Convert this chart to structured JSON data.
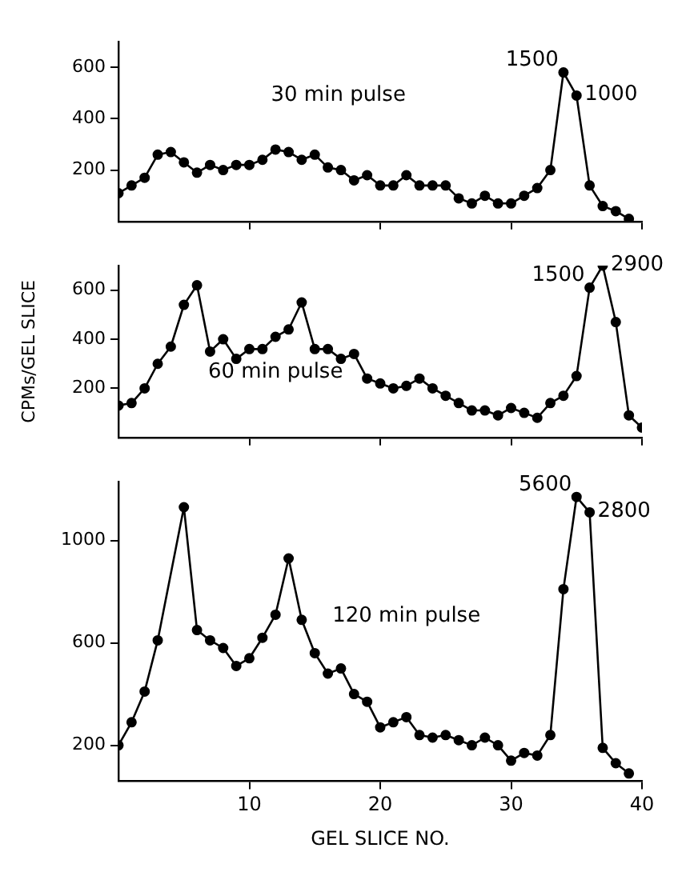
{
  "chart_data": [
    {
      "type": "line",
      "x": [
        0,
        1,
        2,
        3,
        4,
        5,
        6,
        7,
        8,
        9,
        10,
        11,
        12,
        13,
        14,
        15,
        16,
        17,
        18,
        19,
        20,
        21,
        22,
        23,
        24,
        25,
        26,
        27,
        28,
        29,
        30,
        31,
        32,
        33,
        34,
        35,
        36,
        37,
        38,
        39
      ],
      "values": [
        110,
        140,
        170,
        260,
        270,
        230,
        190,
        220,
        200,
        220,
        220,
        240,
        280,
        270,
        240,
        260,
        210,
        200,
        160,
        180,
        140,
        140,
        180,
        140,
        140,
        140,
        90,
        70,
        100,
        70,
        70,
        100,
        130,
        200,
        580,
        490,
        140,
        60,
        40,
        10
      ],
      "color": "#000000",
      "xlim": [
        0,
        40
      ],
      "xticks": [
        10,
        20,
        30,
        40
      ],
      "ylim": [
        0,
        700
      ],
      "yticks": [
        200,
        400,
        600
      ],
      "annotations": [
        "30 min pulse",
        {
          "text": "1500",
          "x": 34,
          "y": 580
        },
        {
          "text": "1000",
          "x": 35,
          "y": 490
        }
      ],
      "grid": false,
      "marker": "circle",
      "tick_labels": "y"
    },
    {
      "type": "line",
      "x": [
        0,
        1,
        2,
        3,
        4,
        5,
        6,
        7,
        8,
        9,
        10,
        11,
        12,
        13,
        14,
        15,
        16,
        17,
        18,
        19,
        20,
        21,
        22,
        23,
        24,
        25,
        26,
        27,
        28,
        29,
        30,
        31,
        32,
        33,
        34,
        35,
        36,
        37,
        38,
        39,
        40
      ],
      "values": [
        130,
        140,
        200,
        300,
        370,
        540,
        620,
        350,
        400,
        320,
        360,
        360,
        410,
        440,
        550,
        360,
        360,
        320,
        340,
        240,
        220,
        200,
        210,
        240,
        200,
        170,
        140,
        110,
        110,
        90,
        120,
        100,
        80,
        140,
        170,
        250,
        610,
        700,
        470,
        90,
        40
      ],
      "color": "#000000",
      "xlim": [
        0,
        40
      ],
      "xticks": [
        10,
        20,
        30,
        40
      ],
      "ylim": [
        0,
        700
      ],
      "yticks": [
        200,
        400,
        600
      ],
      "ylabel": "CPMs/GEL SLICE",
      "annotations": [
        "60 min pulse",
        {
          "text": "1500",
          "x": 36,
          "y": 610
        },
        {
          "text": "2900",
          "x": 37,
          "y": 700
        }
      ],
      "grid": false,
      "marker": "circle",
      "tick_labels": "y"
    },
    {
      "type": "line",
      "x": [
        0,
        1,
        2,
        3,
        4,
        5,
        6,
        7,
        8,
        9,
        10,
        11,
        12,
        13,
        14,
        15,
        16,
        17,
        18,
        19,
        20,
        21,
        22,
        23,
        24,
        25,
        26,
        27,
        28,
        29,
        30,
        31,
        32,
        33,
        34,
        35,
        36,
        37,
        38,
        39
      ],
      "values": [
        200,
        290,
        410,
        610,
        null,
        1130,
        650,
        610,
        580,
        510,
        540,
        620,
        710,
        930,
        690,
        560,
        480,
        500,
        400,
        370,
        270,
        290,
        310,
        240,
        230,
        240,
        220,
        200,
        230,
        200,
        140,
        170,
        160,
        240,
        810,
        1170,
        1110,
        190,
        130,
        90
      ],
      "color": "#000000",
      "xlim": [
        0,
        40
      ],
      "xticks": [
        10,
        20,
        30,
        40
      ],
      "ylim": [
        60,
        1230
      ],
      "yticks": [
        200,
        600,
        1000
      ],
      "xlabel": "GEL SLICE NO.",
      "annotations": [
        "120 min pulse",
        {
          "text": "5600",
          "x": 35,
          "y": 1170
        },
        {
          "text": "2800",
          "x": 36,
          "y": 1110
        }
      ],
      "grid": false,
      "marker": "circle"
    }
  ]
}
